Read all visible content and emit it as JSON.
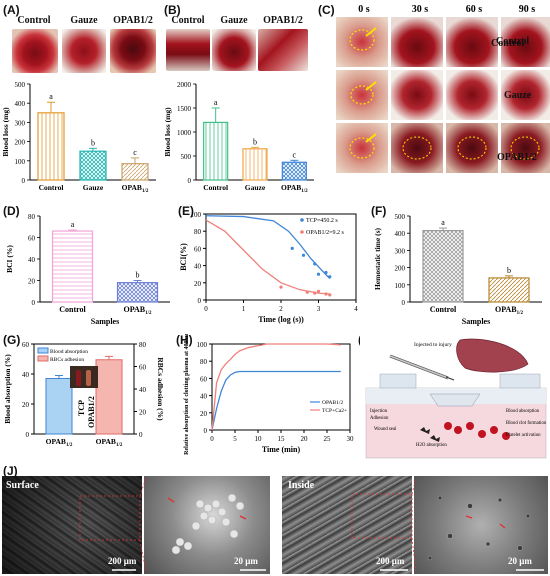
{
  "panel_letters": {
    "A": "(A)",
    "B": "(B)",
    "C": "(C)",
    "D": "(D)",
    "E": "(E)",
    "F": "(F)",
    "G": "(G)",
    "H": "(H)",
    "I": "(I)",
    "J": "(J)"
  },
  "colors": {
    "blood": "#a3141e",
    "dark_blood": "#5c0a10",
    "gauze": "#f1ece6",
    "skin": "#e6c6b0",
    "orange": "#f0a54a",
    "teal": "#22b5b0",
    "brown": "#c9a26a",
    "green": "#3fbf8a",
    "pink": "#f3a3d8",
    "grey": "#999999",
    "blue": "#3f86d6",
    "red": "#e86a6a"
  },
  "panel_a_photos": [
    "Control",
    "Gauze",
    "OPAB1/2"
  ],
  "panel_b_photos": [
    "Control",
    "Gauze",
    "OPAB1/2"
  ],
  "panel_c": {
    "times": [
      "0 s",
      "30 s",
      "60 s",
      "90 s"
    ],
    "rows": [
      "Control",
      "Gauze",
      "OPAB1/2"
    ]
  },
  "panel_i": {
    "labels": [
      "Injected to injury",
      "Injection",
      "Adhesion",
      "Wound seal",
      "H2O absorption",
      "Blood absorption",
      "Blood clot formation",
      "Platelet activation"
    ]
  },
  "panel_j": {
    "titles": [
      "Surface",
      "Inside"
    ],
    "scalebars": [
      "200 μm",
      "20 μm",
      "200 μm",
      "20 μm"
    ]
  },
  "chart_data": [
    {
      "id": "A",
      "type": "bar",
      "categories": [
        "Control",
        "Gauze",
        "OPAB1/2"
      ],
      "values": [
        350,
        150,
        85
      ],
      "errors": [
        55,
        15,
        30
      ],
      "letters": [
        "a",
        "b",
        "c"
      ],
      "ylabel": "Blood loss (mg)",
      "ylim": [
        0,
        500
      ],
      "yticks": [
        0,
        100,
        200,
        300,
        400,
        500
      ]
    },
    {
      "id": "B",
      "type": "bar",
      "categories": [
        "Control",
        "Gauze",
        "OPAB1/2"
      ],
      "values": [
        1200,
        650,
        370
      ],
      "errors": [
        300,
        30,
        40
      ],
      "letters": [
        "a",
        "b",
        "c"
      ],
      "ylabel": "Blood loss (mg)",
      "ylim": [
        0,
        2000
      ],
      "yticks": [
        0,
        500,
        1000,
        1500,
        2000
      ]
    },
    {
      "id": "D",
      "type": "bar",
      "categories": [
        "Control",
        "OPAB1/2"
      ],
      "values": [
        66,
        18
      ],
      "errors": [
        1,
        2
      ],
      "letters": [
        "a",
        "b"
      ],
      "ylabel": "BCI (%)",
      "xlabel": "Samples",
      "ylim": [
        0,
        80
      ],
      "yticks": [
        0,
        20,
        40,
        60,
        80
      ]
    },
    {
      "id": "E",
      "type": "scatter",
      "xlabel": "Time (log (s))",
      "ylabel": "BCI(%)",
      "xlim": [
        0,
        4
      ],
      "ylim": [
        0,
        100
      ],
      "xticks": [
        0,
        1,
        2,
        3,
        4
      ],
      "yticks": [
        0,
        20,
        40,
        60,
        80,
        100
      ],
      "legend": [
        "TCP=450.2 s",
        "OPAB1/2=9.2 s"
      ],
      "series": [
        {
          "name": "TCP=450.2 s",
          "points": [
            [
              2.3,
              60
            ],
            [
              2.6,
              52
            ],
            [
              2.9,
              42
            ],
            [
              3.0,
              30
            ],
            [
              3.2,
              32
            ],
            [
              3.3,
              27
            ]
          ],
          "fit": [
            [
              0,
              98
            ],
            [
              1,
              97
            ],
            [
              1.8,
              92
            ],
            [
              2.2,
              80
            ],
            [
              2.5,
              65
            ],
            [
              2.8,
              48
            ],
            [
              3.1,
              34
            ],
            [
              3.3,
              25
            ]
          ]
        },
        {
          "name": "OPAB1/2=9.2 s",
          "points": [
            [
              2.0,
              15
            ],
            [
              2.7,
              9
            ],
            [
              2.9,
              8
            ],
            [
              3.0,
              10
            ],
            [
              3.2,
              7
            ],
            [
              3.3,
              6
            ]
          ],
          "fit": [
            [
              0,
              93
            ],
            [
              0.5,
              80
            ],
            [
              1,
              58
            ],
            [
              1.5,
              36
            ],
            [
              2,
              20
            ],
            [
              2.5,
              12
            ],
            [
              3,
              8
            ],
            [
              3.3,
              7
            ]
          ]
        }
      ]
    },
    {
      "id": "F",
      "type": "bar",
      "categories": [
        "Control",
        "OPAB1/2"
      ],
      "values": [
        415,
        140
      ],
      "errors": [
        15,
        12
      ],
      "letters": [
        "a",
        "b"
      ],
      "ylabel": "Hemostatic time (s)",
      "xlabel": "Samples",
      "ylim": [
        0,
        500
      ],
      "yticks": [
        0,
        100,
        200,
        300,
        400,
        500
      ]
    },
    {
      "id": "G",
      "type": "bar",
      "categories": [
        "OPAB1/2",
        "OPAB1/2"
      ],
      "legend": [
        "Blood absorption",
        "RBCs adhesion"
      ],
      "values": [
        37,
        66
      ],
      "errors": [
        2,
        3
      ],
      "ylabel": "Blood absorption (%)",
      "ylabel_right": "RBCs adhesion (%)",
      "ylim": [
        0,
        60
      ],
      "ylim_right": [
        0,
        80
      ],
      "yticks": [
        0,
        20,
        40,
        60
      ],
      "yticks_right": [
        0,
        20,
        40,
        60,
        80
      ],
      "inset_labels": [
        "TCP",
        "OPAB1/2"
      ]
    },
    {
      "id": "H",
      "type": "line",
      "xlabel": "Time (min)",
      "ylabel": "Relative absorption of clotting plasma at 400 nm (%)",
      "xlim": [
        0,
        30
      ],
      "ylim": [
        0,
        100
      ],
      "xticks": [
        0,
        5,
        10,
        15,
        20,
        25,
        30
      ],
      "yticks": [
        0,
        20,
        40,
        60,
        80,
        100
      ],
      "series": [
        {
          "name": "OPAB1/2",
          "x": [
            0,
            1,
            2,
            3,
            4,
            5,
            6,
            8,
            10,
            15,
            20,
            25,
            28
          ],
          "y": [
            0,
            25,
            45,
            58,
            64,
            67,
            68,
            68,
            68,
            68,
            68,
            68,
            68
          ]
        },
        {
          "name": "TCP+Ca2+",
          "x": [
            0,
            1,
            2,
            3,
            4,
            5,
            6,
            8,
            10,
            12,
            15,
            20,
            25,
            28
          ],
          "y": [
            0,
            55,
            70,
            77,
            82,
            88,
            92,
            96,
            98,
            100,
            100,
            100,
            100,
            99
          ]
        }
      ]
    }
  ]
}
